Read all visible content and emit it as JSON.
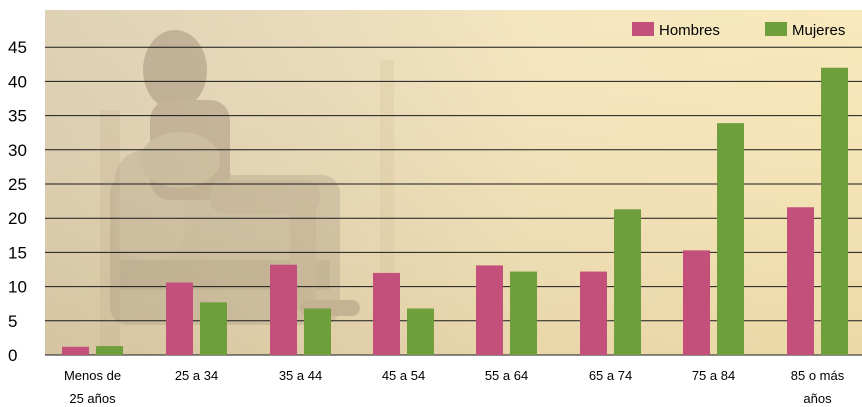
{
  "chart_data": {
    "type": "bar",
    "title": "",
    "xlabel": "",
    "ylabel": "",
    "ylim": [
      0,
      47
    ],
    "yticks": [
      0,
      5,
      10,
      15,
      20,
      25,
      30,
      35,
      40,
      45
    ],
    "grid": true,
    "legend_position": "top-right",
    "categories": [
      [
        "Menos de",
        "25 años"
      ],
      [
        "25 a 34"
      ],
      [
        "35 a 44"
      ],
      [
        "45 a 54"
      ],
      [
        "55 a 64"
      ],
      [
        "65 a 74"
      ],
      [
        "75 a 84"
      ],
      [
        "85 o más",
        "años"
      ]
    ],
    "series": [
      {
        "name": "Hombres",
        "color": "#c2507a",
        "values": [
          1.2,
          10.6,
          13.2,
          12.0,
          13.1,
          12.2,
          15.3,
          21.6
        ]
      },
      {
        "name": "Mujeres",
        "color": "#6f9f3c",
        "values": [
          1.3,
          7.7,
          6.8,
          6.8,
          12.2,
          21.3,
          33.9,
          42.0
        ]
      }
    ]
  }
}
